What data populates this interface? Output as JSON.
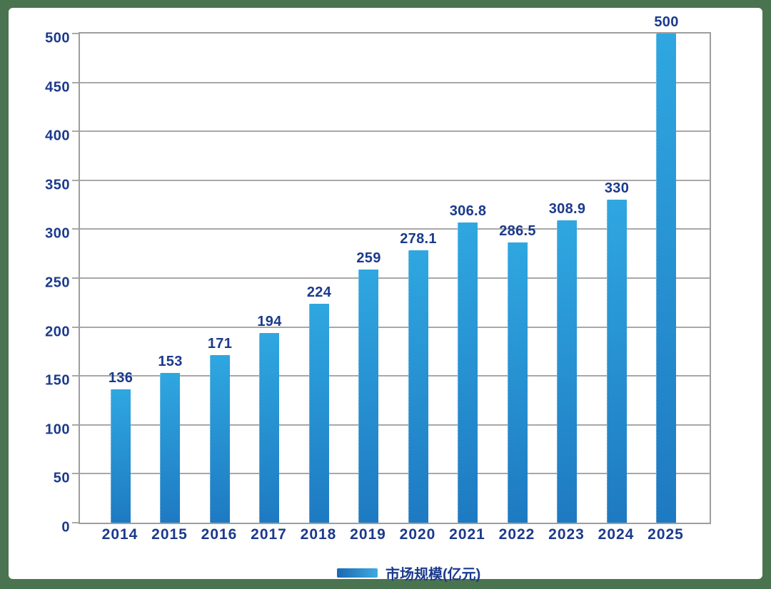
{
  "chart_data": {
    "type": "bar",
    "title": "",
    "categories": [
      "2014",
      "2015",
      "2016",
      "2017",
      "2018",
      "2019",
      "2020",
      "2021",
      "2022",
      "2023",
      "2024",
      "2025"
    ],
    "series": [
      {
        "name": "市场规模(亿元)",
        "values": [
          136,
          153,
          171,
          194,
          224,
          259,
          278.1,
          306.8,
          286.5,
          308.9,
          330,
          500
        ]
      }
    ],
    "value_labels": [
      "136",
      "153",
      "171",
      "194",
      "224",
      "259",
      "278.1",
      "306.8",
      "286.5",
      "308.9",
      "330",
      "500"
    ],
    "xlabel": "",
    "ylabel": "",
    "ylim": [
      0,
      500
    ],
    "yticks": [
      0,
      50,
      100,
      150,
      200,
      250,
      300,
      350,
      400,
      450,
      500
    ],
    "grid": true,
    "legend": {
      "position": "bottom",
      "label": "市场规模(亿元)"
    }
  },
  "colors": {
    "frame_background": "#4A7350",
    "canvas_background": "#FFFFFF",
    "label_text": "#1B3A8C",
    "gridline": "#A8A8A8",
    "plot_border": "#9E9E9E",
    "bar_gradient_top": "#2FA7E0",
    "bar_gradient_bottom": "#1E7AC2",
    "legend_swatch_left": "#1A69B2",
    "legend_swatch_right": "#3FA9E2"
  }
}
